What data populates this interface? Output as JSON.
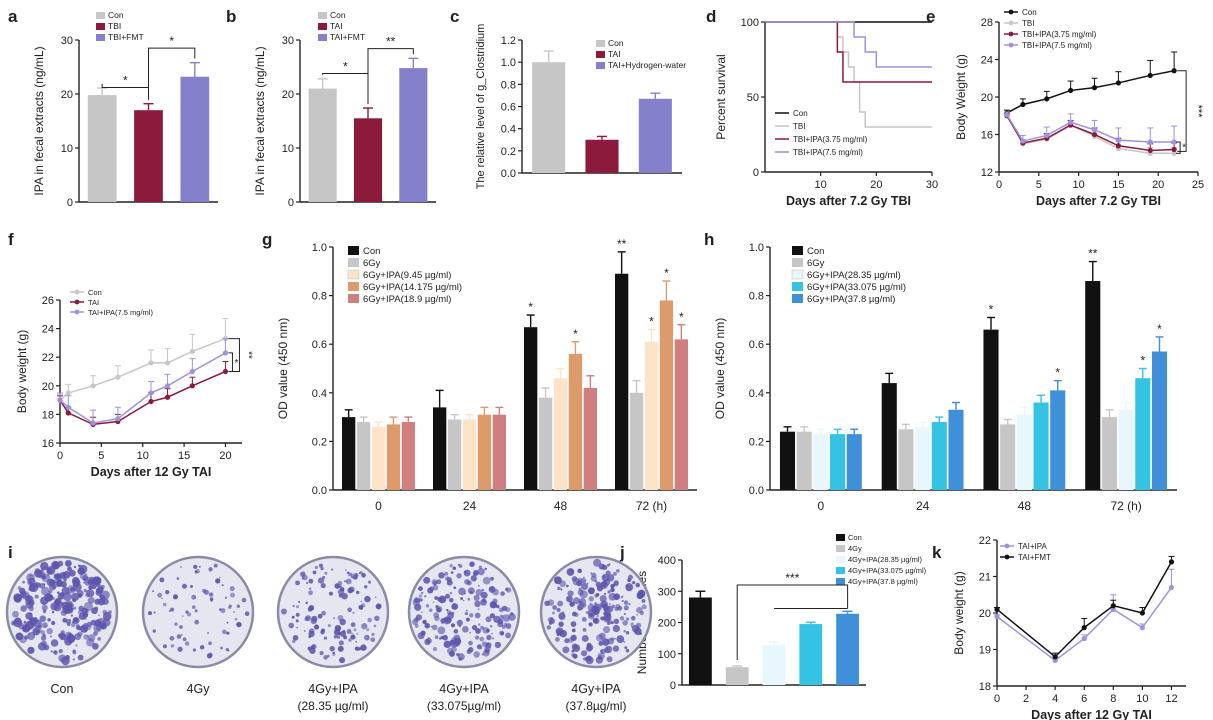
{
  "colors": {
    "gray": "#c6c6c6",
    "maroon": "#8b1a3c",
    "purple": "#8580cc",
    "black": "#111111",
    "lavender": "#9b93e0",
    "cream": "#fde3c8",
    "peach": "#f3c39b",
    "orange": "#dd9a6a",
    "rose": "#cf7f7f",
    "ice": "#e8f6fd",
    "cyan": "#34c3e3",
    "blue": "#3f8fd9",
    "axis": "#222222",
    "dish_bg": "#e6e6f1",
    "dish_ring": "#8b8ba6",
    "dish_colony": "#5b55ad"
  },
  "chart_data": [
    {
      "panel": "a",
      "type": "bar",
      "ylabel": "IPA in fecal extracts (ng/mL)",
      "xlabel": "",
      "ylim": [
        0,
        30
      ],
      "yticks": [
        0,
        10,
        20,
        30
      ],
      "categories": [
        "Con",
        "TBI",
        "TBI+FMT"
      ],
      "values": [
        19.8,
        17.0,
        23.2
      ],
      "errors": [
        1.3,
        1.2,
        2.6
      ],
      "colors": [
        "gray",
        "maroon",
        "purple"
      ],
      "legend": [
        "Con",
        "TBI",
        "TBI+FMT"
      ],
      "sig": [
        {
          "a": 0,
          "b": 1,
          "label": "*",
          "level": 21.2
        },
        {
          "a": 1,
          "b": 2,
          "label": "*",
          "level": 28.5
        }
      ]
    },
    {
      "panel": "b",
      "type": "bar",
      "ylabel": "IPA in fecal extracts (ng/mL)",
      "xlabel": "",
      "ylim": [
        0,
        30
      ],
      "yticks": [
        0,
        10,
        20,
        30
      ],
      "categories": [
        "Con",
        "TAI",
        "TAI+FMT"
      ],
      "values": [
        21.0,
        15.5,
        24.8
      ],
      "errors": [
        1.8,
        1.9,
        1.8
      ],
      "colors": [
        "gray",
        "maroon",
        "purple"
      ],
      "legend": [
        "Con",
        "TAI",
        "TAI+FMT"
      ],
      "sig": [
        {
          "a": 0,
          "b": 1,
          "label": "*",
          "level": 23.8
        },
        {
          "a": 1,
          "b": 2,
          "label": "**",
          "level": 28.4
        }
      ]
    },
    {
      "panel": "c",
      "type": "bar",
      "ylabel": "The relative level of g_Clostridium",
      "xlabel": "",
      "ylim": [
        0,
        1.2
      ],
      "yticks": [
        0,
        0.2,
        0.4,
        0.6,
        0.8,
        1.0,
        1.2
      ],
      "categories": [
        "Con",
        "TAI",
        "TAI+Hydrogen-water"
      ],
      "values": [
        1.0,
        0.3,
        0.67
      ],
      "errors": [
        0.1,
        0.03,
        0.05
      ],
      "colors": [
        "gray",
        "maroon",
        "purple"
      ],
      "legend": [
        "Con",
        "TAI",
        "TAI+Hydrogen-water"
      ],
      "sig": []
    },
    {
      "panel": "d",
      "type": "line",
      "subtype": "survival",
      "ylabel": "Percent survival",
      "xlabel": "Days after 7.2 Gy TBI",
      "xlim": [
        0,
        30
      ],
      "xticks": [
        10,
        20,
        30
      ],
      "ylim": [
        0,
        100
      ],
      "yticks": [
        0,
        50,
        100
      ],
      "series": [
        {
          "name": "Con",
          "color": "black",
          "x": [
            0,
            30
          ],
          "y": [
            100,
            100
          ]
        },
        {
          "name": "TBI",
          "color": "gray",
          "x": [
            0,
            13,
            13,
            14,
            14,
            15,
            15,
            16,
            16,
            17,
            17,
            18,
            18,
            30
          ],
          "y": [
            100,
            100,
            90,
            90,
            80,
            80,
            70,
            70,
            60,
            60,
            40,
            40,
            30,
            30
          ]
        },
        {
          "name": "TBI+IPA(3.75 mg/ml)",
          "color": "maroon",
          "x": [
            0,
            13,
            13,
            14,
            14,
            18,
            18,
            30
          ],
          "y": [
            100,
            100,
            80,
            80,
            60,
            60,
            60,
            60
          ]
        },
        {
          "name": "TBI+IPA(7.5 mg/ml)",
          "color": "lavender",
          "x": [
            0,
            16,
            16,
            18,
            18,
            20,
            20,
            30
          ],
          "y": [
            100,
            100,
            90,
            90,
            80,
            80,
            70,
            70
          ]
        }
      ]
    },
    {
      "panel": "e",
      "type": "line",
      "ylabel": "Body Weight (g)",
      "xlabel": "Days after 7.2 Gy TBI",
      "xlim": [
        0,
        25
      ],
      "xticks": [
        0,
        5,
        10,
        15,
        20,
        25
      ],
      "ylim": [
        12,
        28
      ],
      "yticks": [
        12,
        16,
        20,
        24,
        28
      ],
      "series": [
        {
          "name": "Con",
          "color": "black",
          "x": [
            1,
            3,
            6,
            9,
            12,
            15,
            19,
            22
          ],
          "y": [
            18.3,
            19.2,
            19.8,
            20.7,
            21.0,
            21.5,
            22.3,
            22.8
          ],
          "err": [
            0.3,
            0.6,
            0.8,
            1.0,
            1.0,
            1.2,
            1.6,
            2.0
          ]
        },
        {
          "name": "TBI",
          "color": "gray",
          "x": [
            1,
            3,
            6,
            9,
            12,
            15,
            19,
            22
          ],
          "y": [
            18.0,
            15.0,
            15.5,
            17.0,
            15.8,
            14.5,
            14.0,
            14.0
          ],
          "err": [
            0.2,
            0.3,
            0.5,
            0.5,
            0.8,
            0.7,
            0.6,
            0.6
          ]
        },
        {
          "name": "TBI+IPA(3.75 mg/ml)",
          "color": "maroon",
          "x": [
            1,
            3,
            6,
            9,
            12,
            15,
            19,
            22
          ],
          "y": [
            18.0,
            15.1,
            15.6,
            17.0,
            16.0,
            14.8,
            14.3,
            14.4
          ],
          "err": [
            0.2,
            0.3,
            0.5,
            0.5,
            0.7,
            0.8,
            0.7,
            0.7
          ]
        },
        {
          "name": "TBI+IPA(7.5 mg/ml)",
          "color": "lavender",
          "x": [
            1,
            3,
            6,
            9,
            12,
            15,
            19,
            22
          ],
          "y": [
            18.1,
            15.3,
            15.9,
            17.3,
            16.5,
            15.4,
            15.2,
            15.2
          ],
          "err": [
            0.3,
            0.6,
            0.9,
            0.9,
            1.0,
            1.3,
            1.5,
            1.7
          ]
        }
      ],
      "annotations": [
        "***",
        "*"
      ]
    },
    {
      "panel": "f",
      "type": "line",
      "ylabel": "Body weight (g)",
      "xlabel": "Days after 12 Gy TAI",
      "xlim": [
        0,
        22
      ],
      "xticks": [
        0,
        5,
        10,
        15,
        20
      ],
      "ylim": [
        16,
        26
      ],
      "yticks": [
        16,
        18,
        20,
        22,
        24,
        26
      ],
      "series": [
        {
          "name": "Con",
          "color": "gray",
          "x": [
            0,
            1,
            4,
            7,
            11,
            13,
            16,
            20
          ],
          "y": [
            19.0,
            19.5,
            20.0,
            20.6,
            21.6,
            21.6,
            22.4,
            23.3
          ],
          "err": [
            0.4,
            0.6,
            0.7,
            0.8,
            0.9,
            1.0,
            1.2,
            1.4
          ]
        },
        {
          "name": "TAI",
          "color": "maroon",
          "x": [
            0,
            1,
            4,
            7,
            11,
            13,
            16,
            20
          ],
          "y": [
            19.0,
            18.1,
            17.3,
            17.5,
            18.9,
            19.2,
            20.0,
            21.0
          ],
          "err": [
            0.3,
            0.4,
            0.5,
            0.5,
            0.6,
            0.6,
            0.6,
            0.7
          ]
        },
        {
          "name": "TAI+IPA(7.5 mg/ml)",
          "color": "lavender",
          "x": [
            0,
            1,
            4,
            7,
            11,
            13,
            16,
            20
          ],
          "y": [
            19.0,
            18.5,
            17.4,
            17.7,
            19.5,
            20.0,
            21.0,
            22.3
          ],
          "err": [
            0.5,
            0.8,
            0.9,
            0.8,
            0.8,
            0.8,
            0.9,
            1.0
          ]
        }
      ],
      "annotations": [
        "*",
        "**"
      ]
    },
    {
      "panel": "g",
      "type": "bar",
      "ylabel": "OD value (450 nm)",
      "xlabel": "",
      "ylim": [
        0,
        1.0
      ],
      "yticks": [
        0,
        0.2,
        0.4,
        0.6,
        0.8,
        1.0
      ],
      "categories": [
        "0",
        "24",
        "48",
        "72 (h)"
      ],
      "series": [
        {
          "name": "Con",
          "color": "black",
          "values": [
            0.3,
            0.34,
            0.67,
            0.89
          ],
          "errors": [
            0.03,
            0.07,
            0.05,
            0.09
          ],
          "stars": [
            "",
            "",
            "*",
            "**"
          ]
        },
        {
          "name": "6Gy",
          "color": "gray",
          "values": [
            0.28,
            0.29,
            0.38,
            0.4
          ],
          "errors": [
            0.02,
            0.02,
            0.04,
            0.05
          ],
          "stars": [
            "",
            "",
            "",
            ""
          ]
        },
        {
          "name": "6Gy+IPA(9.45 µg/ml)",
          "color": "cream",
          "values": [
            0.26,
            0.29,
            0.46,
            0.61
          ],
          "errors": [
            0.02,
            0.02,
            0.04,
            0.05
          ],
          "stars": [
            "",
            "",
            "",
            "*"
          ]
        },
        {
          "name": "6Gy+IPA(14.175 µg/ml)",
          "color": "orange",
          "values": [
            0.27,
            0.31,
            0.56,
            0.78
          ],
          "errors": [
            0.03,
            0.03,
            0.05,
            0.08
          ],
          "stars": [
            "",
            "",
            "*",
            "*"
          ]
        },
        {
          "name": "6Gy+IPA(18.9 µg/ml)",
          "color": "rose",
          "values": [
            0.28,
            0.31,
            0.42,
            0.62
          ],
          "errors": [
            0.02,
            0.03,
            0.05,
            0.06
          ],
          "stars": [
            "",
            "",
            "",
            "*"
          ]
        }
      ]
    },
    {
      "panel": "h",
      "type": "bar",
      "ylabel": "OD value (450 nm)",
      "xlabel": "",
      "ylim": [
        0,
        1.0
      ],
      "yticks": [
        0,
        0.2,
        0.4,
        0.6,
        0.8,
        1.0
      ],
      "categories": [
        "0",
        "24",
        "48",
        "72 (h)"
      ],
      "series": [
        {
          "name": "Con",
          "color": "black",
          "values": [
            0.24,
            0.44,
            0.66,
            0.86
          ],
          "errors": [
            0.02,
            0.04,
            0.05,
            0.08
          ],
          "stars": [
            "",
            "",
            "*",
            "**"
          ]
        },
        {
          "name": "6Gy",
          "color": "gray",
          "values": [
            0.24,
            0.25,
            0.27,
            0.3
          ],
          "errors": [
            0.02,
            0.02,
            0.02,
            0.03
          ],
          "stars": [
            "",
            "",
            "",
            ""
          ]
        },
        {
          "name": "6Gy+IPA(28.35 µg/ml)",
          "color": "ice",
          "values": [
            0.23,
            0.26,
            0.31,
            0.33
          ],
          "errors": [
            0.02,
            0.02,
            0.03,
            0.03
          ],
          "stars": [
            "",
            "",
            "",
            ""
          ]
        },
        {
          "name": "6Gy+IPA(33.075 µg/ml)",
          "color": "cyan",
          "values": [
            0.23,
            0.28,
            0.36,
            0.46
          ],
          "errors": [
            0.02,
            0.02,
            0.03,
            0.04
          ],
          "stars": [
            "",
            "",
            "",
            "*"
          ]
        },
        {
          "name": "6Gy+IPA(37.8 µg/ml)",
          "color": "blue",
          "values": [
            0.23,
            0.33,
            0.41,
            0.57
          ],
          "errors": [
            0.02,
            0.03,
            0.04,
            0.06
          ],
          "stars": [
            "",
            "",
            "*",
            "*"
          ]
        }
      ]
    },
    {
      "panel": "j",
      "type": "bar",
      "ylabel": "Number of colonies",
      "xlabel": "",
      "ylim": [
        0,
        400
      ],
      "yticks": [
        0,
        100,
        200,
        300,
        400
      ],
      "categories": [
        "Con",
        "4Gy",
        "4Gy+IPA(28.35 µg/ml)",
        "4Gy+IPA(33.075 µg/ml)",
        "4Gy+IPA(37.8 µg/ml)"
      ],
      "values": [
        280,
        57,
        128,
        195,
        228
      ],
      "errors": [
        20,
        4,
        10,
        6,
        8
      ],
      "colors": [
        "black",
        "gray",
        "ice",
        "cyan",
        "blue"
      ],
      "legend": [
        "Con",
        "4Gy",
        "4Gy+IPA(28.35 µg/ml)",
        "4Gy+IPA(33.075 µg/ml)",
        "4Gy+IPA(37.8 µg/ml)"
      ],
      "sig_label": "***"
    },
    {
      "panel": "k",
      "type": "line",
      "ylabel": "Body weight (g)",
      "xlabel": "Days after 12 Gy TAI",
      "xlim": [
        0,
        13
      ],
      "xticks": [
        0,
        2,
        4,
        6,
        8,
        10,
        12
      ],
      "ylim": [
        18,
        22
      ],
      "yticks": [
        18,
        19,
        20,
        21,
        22
      ],
      "series": [
        {
          "name": "TAI+IPA",
          "color": "lavender",
          "x": [
            0,
            4,
            6,
            8,
            10,
            12
          ],
          "y": [
            19.9,
            18.7,
            19.3,
            20.1,
            19.6,
            20.7
          ],
          "err": [
            0.05,
            0.08,
            0.1,
            0.4,
            0.1,
            0.5
          ]
        },
        {
          "name": "TAI+FMT",
          "color": "black",
          "x": [
            0,
            4,
            6,
            8,
            10,
            12
          ],
          "y": [
            20.1,
            18.8,
            19.6,
            20.2,
            20.0,
            21.4
          ],
          "err": [
            0.05,
            0.1,
            0.25,
            0.15,
            0.15,
            0.15
          ]
        }
      ]
    }
  ],
  "panel_i": {
    "letter": "i",
    "dishes": [
      {
        "label": "Con",
        "sublabel": "",
        "density": 1.0
      },
      {
        "label": "4Gy",
        "sublabel": "",
        "density": 0.28
      },
      {
        "label": "4Gy+IPA",
        "sublabel": "(28.35 µg/ml)",
        "density": 0.5
      },
      {
        "label": "4Gy+IPA",
        "sublabel": "(33.075µg/ml)",
        "density": 0.72
      },
      {
        "label": "4Gy+IPA",
        "sublabel": "(37.8µg/ml)",
        "density": 0.82
      }
    ]
  }
}
